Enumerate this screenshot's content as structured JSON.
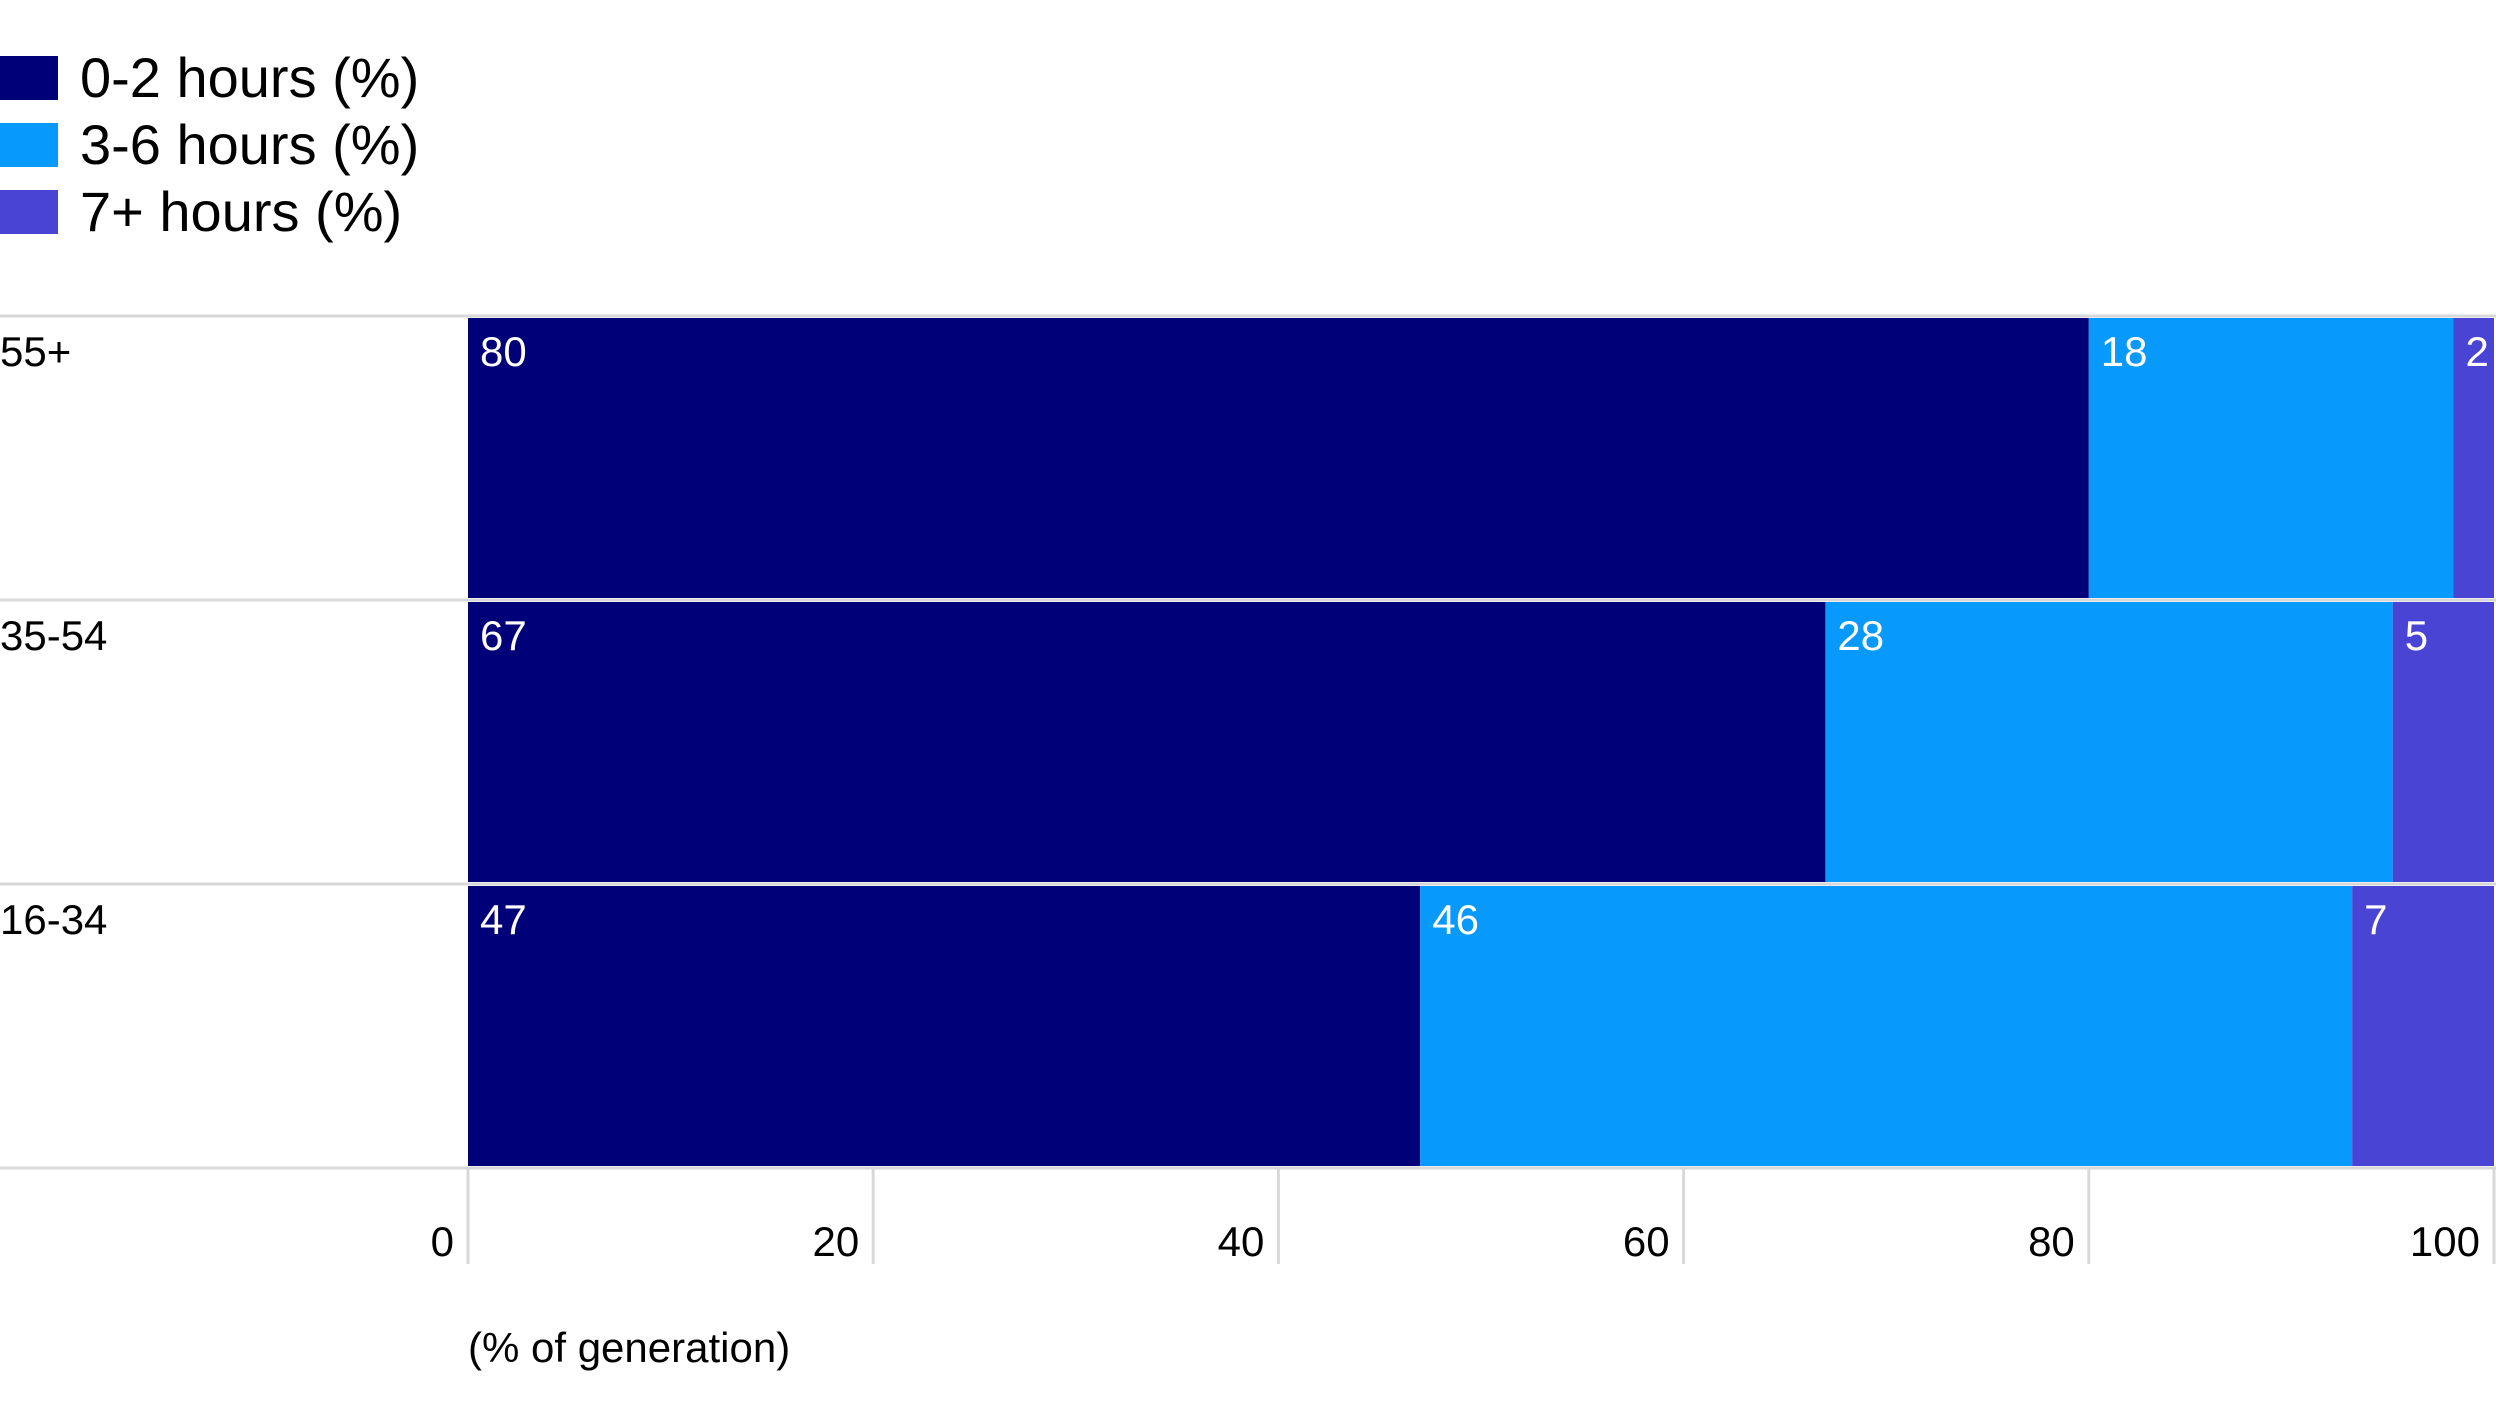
{
  "chart_data": {
    "type": "bar",
    "orientation": "horizontal",
    "stacked": true,
    "categories": [
      "55+",
      "35-54",
      "16-34"
    ],
    "series": [
      {
        "name": "0-2 hours (%)",
        "values": [
          80,
          67,
          47
        ],
        "color": "#000078"
      },
      {
        "name": "3-6 hours (%)",
        "values": [
          18,
          28,
          46
        ],
        "color": "#0799fb"
      },
      {
        "name": "7+ hours (%)",
        "values": [
          2,
          5,
          7
        ],
        "color": "#4a44d4"
      }
    ],
    "xlim": [
      0,
      100
    ],
    "xticks": [
      0,
      20,
      40,
      60,
      80,
      100
    ],
    "xlabel": "(% of generation)",
    "title": "",
    "legend_position": "top-left"
  }
}
